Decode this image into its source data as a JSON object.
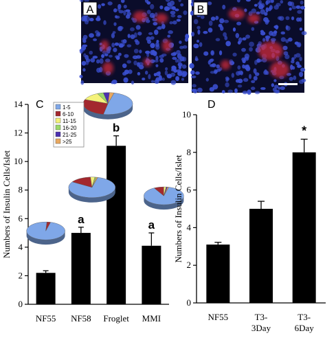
{
  "panels": {
    "A": {
      "letter": "A"
    },
    "B": {
      "letter": "B"
    },
    "C": {
      "letter": "C"
    },
    "D": {
      "letter": "D"
    }
  },
  "colors": {
    "bar": "#000000",
    "micrograph_background": "#0a0c2a",
    "nuclei": "#3a4fd0",
    "insulin_stain": "#d02a3a",
    "scale_bar": "#ffffff"
  },
  "chart_data": [
    {
      "panel": "C",
      "type": "bar",
      "categories": [
        "NF55",
        "NF58",
        "Froglet",
        "MMI"
      ],
      "values": [
        2.2,
        5.0,
        11.1,
        4.1
      ],
      "errors": [
        0.15,
        0.4,
        0.7,
        0.9
      ],
      "significance": [
        "",
        "a",
        "b",
        "a"
      ],
      "title": "",
      "xlabel": "",
      "ylabel": "Numbers of Insulin Cells/Islet",
      "ylim": [
        0,
        14
      ],
      "yticks": [
        "0",
        "2",
        "4",
        "6",
        "8",
        "10",
        "12",
        "14"
      ],
      "grid": false,
      "legend": {
        "placement": "top-left",
        "entries": [
          {
            "label": "1-5",
            "color": "#7fa7e8"
          },
          {
            "label": "6-10",
            "color": "#a3282e"
          },
          {
            "label": "11-15",
            "color": "#f4f27a"
          },
          {
            "label": "16-20",
            "color": "#9bd86a"
          },
          {
            "label": "21-25",
            "color": "#4b2fb0"
          },
          {
            "label": ">25",
            "color": "#e8a860"
          }
        ]
      },
      "pies": [
        {
          "category": "NF55",
          "type": "pie",
          "slices": [
            97,
            3,
            0,
            0,
            0,
            0
          ]
        },
        {
          "category": "NF58",
          "type": "pie",
          "slices": [
            80,
            15,
            3,
            1,
            0,
            1
          ]
        },
        {
          "category": "Froglet",
          "type": "pie",
          "slices": [
            49,
            28,
            12,
            4,
            4,
            3
          ]
        },
        {
          "category": "MMI",
          "type": "pie",
          "slices": [
            88,
            8,
            2,
            0,
            1,
            1
          ]
        }
      ]
    },
    {
      "panel": "D",
      "type": "bar",
      "categories": [
        "NF55",
        "T3-3Day",
        "T3-6Day"
      ],
      "tick_labels": [
        [
          "NF55"
        ],
        [
          "T3-",
          "3Day"
        ],
        [
          "T3-",
          "6Day"
        ]
      ],
      "values": [
        3.1,
        5.0,
        8.0
      ],
      "errors": [
        0.12,
        0.4,
        0.7
      ],
      "significance": [
        "",
        "",
        "*"
      ],
      "title": "",
      "xlabel": "",
      "ylabel": "Numbers of Insulin Cells/Islet",
      "ylim": [
        0,
        10
      ],
      "yticks": [
        "0",
        "2",
        "4",
        "6",
        "8",
        "10"
      ],
      "grid": false
    }
  ]
}
